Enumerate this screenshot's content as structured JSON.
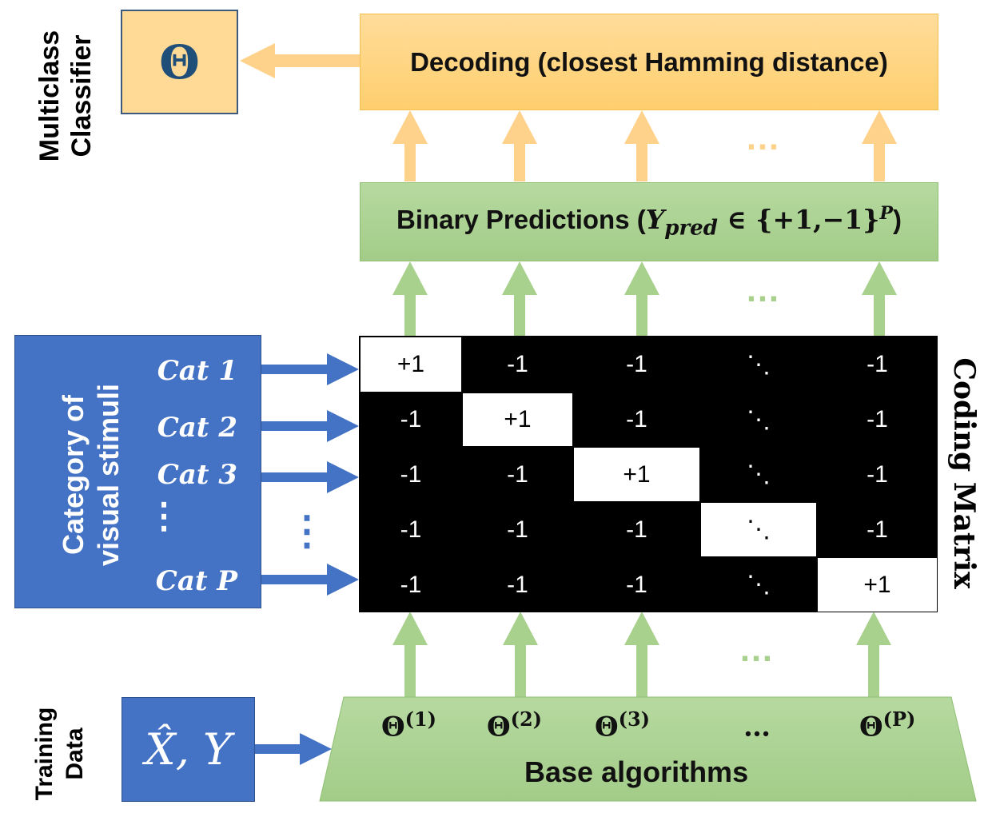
{
  "labels": {
    "multiclass_classifier": "Multiclass Classifier",
    "training_data": "Training Data",
    "coding_matrix": "Coding Matrix",
    "category": "Category of visual stimuli"
  },
  "theta_symbol": "Θ",
  "decoding": "Decoding (closest Hamming distance)",
  "binary_predictions": {
    "prefix": "Binary Predictions (",
    "y": "Y",
    "sub": "pred",
    "set": " ∈ {+1,−1}",
    "sup": "P",
    "suffix": ")"
  },
  "categories": [
    "Cat 1",
    "Cat 2",
    "Cat 3",
    "⋮",
    "Cat P"
  ],
  "category_dots": "⋮",
  "matrix": [
    [
      "+1",
      "-1",
      "-1",
      "⋱",
      "-1"
    ],
    [
      "-1",
      "+1",
      "-1",
      "⋱",
      "-1"
    ],
    [
      "-1",
      "-1",
      "+1",
      "⋱",
      "-1"
    ],
    [
      "-1",
      "-1",
      "-1",
      "⋱",
      "-1"
    ],
    [
      "-1",
      "-1",
      "-1",
      "⋱",
      "+1"
    ]
  ],
  "training_input": "X̂, Y",
  "base_algorithms": {
    "label": "Base algorithms",
    "items": [
      {
        "sym": "Θ",
        "sup": "(1)"
      },
      {
        "sym": "Θ",
        "sup": "(2)"
      },
      {
        "sym": "Θ",
        "sup": "(3)"
      },
      {
        "sym": "…",
        "sup": ""
      },
      {
        "sym": "Θ",
        "sup": "(P)"
      }
    ]
  },
  "ellipsis": "…",
  "colors": {
    "orange": "#ffd996",
    "orange_arrow": "#ffd28c",
    "green": "#a9d18e",
    "green_arrow": "#a9d18e",
    "blue": "#4472c4",
    "blue_arrow": "#4472c4",
    "theta_text": "#1f4e79"
  }
}
